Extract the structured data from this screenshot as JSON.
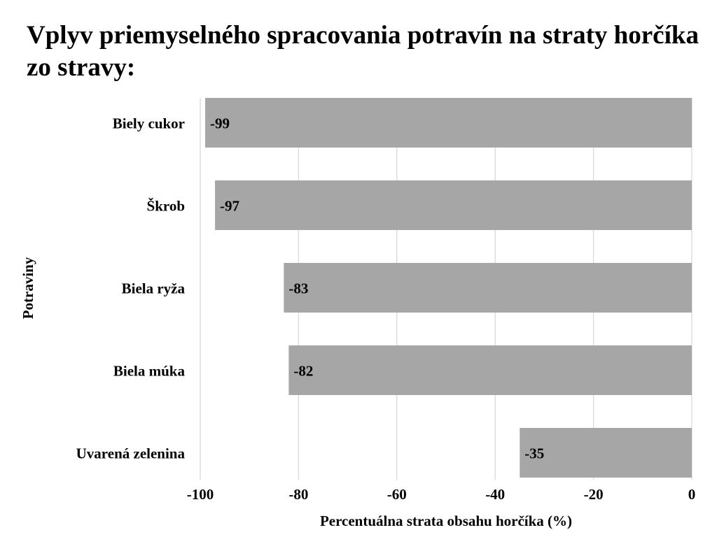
{
  "chart_data": {
    "type": "bar",
    "orientation": "horizontal",
    "title": "Vplyv priemyselného spracovania potravín na straty horčíka zo stravy:",
    "xlabel": "Percentuálna strata obsahu horčíka (%)",
    "ylabel": "Potraviny",
    "categories": [
      "Biely cukor",
      "Škrob",
      "Biela ryža",
      "Biela múka",
      "Uvarená zelenina"
    ],
    "values": [
      -99,
      -97,
      -83,
      -82,
      -35
    ],
    "data_labels": [
      "-99",
      "-97",
      "-83",
      "-82",
      "-35"
    ],
    "xlim": [
      -100,
      0
    ],
    "xticks": [
      -100,
      -80,
      -60,
      -40,
      -20,
      0
    ],
    "xtick_labels": [
      "-100",
      "-80",
      "-60",
      "-40",
      "-20",
      "0"
    ],
    "grid": "vertical",
    "legend": "none",
    "bar_color": "#a6a6a6",
    "grid_color": "#d9d9d9"
  }
}
